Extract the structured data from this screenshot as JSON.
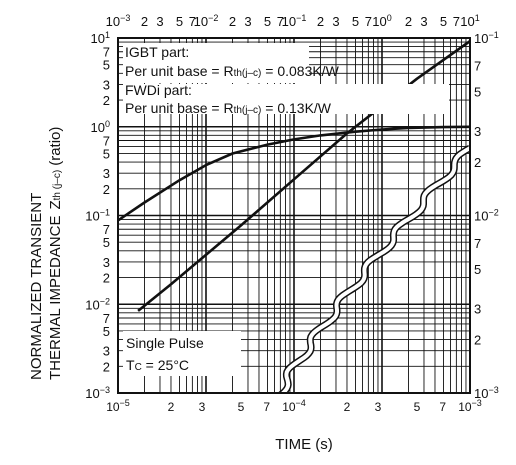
{
  "chart_data": {
    "type": "line",
    "title": "",
    "xlabel": "TIME (s)",
    "ylabel_line1": "NORMALIZED TRANSIENT",
    "ylabel_line2": "THERMAL IMPEDANCE",
    "ylabel_symbol": "Z",
    "ylabel_subscript": "th (j–c)",
    "ylabel_unit": "(ratio)",
    "scale": "log-log",
    "x_top_range": [
      0.001,
      10
    ],
    "x_bottom_range": [
      1e-05,
      0.001
    ],
    "y_left_range": [
      0.001,
      10
    ],
    "y_right_range": [
      0.001,
      0.1
    ],
    "grid": true,
    "annotations": {
      "igbt_title": "IGBT part:",
      "igbt_base_prefix": "Per unit base = R",
      "igbt_base_sub": "th(j–c)",
      "igbt_base_value": " = 0.083K/W",
      "fwdi_title": "FWDi part:",
      "fwdi_base_prefix": "Per unit base = R",
      "fwdi_base_sub": "th(j–c)",
      "fwdi_base_value": " = 0.13K/W",
      "pulse": "Single Pulse",
      "tc_prefix": "T",
      "tc_sub": "C",
      "tc_value": " = 25°C"
    },
    "series": [
      {
        "axis": "top-left",
        "x": [
          0.001,
          0.002,
          0.005,
          0.01,
          0.02,
          0.05,
          0.1,
          0.2,
          0.5,
          1,
          2,
          5,
          10
        ],
        "y": [
          0.088,
          0.14,
          0.25,
          0.37,
          0.5,
          0.63,
          0.72,
          0.8,
          0.88,
          0.93,
          0.97,
          0.99,
          1.0
        ]
      },
      {
        "axis": "bottom-right",
        "x": [
          1.3e-05,
          2e-05,
          5e-05,
          0.0001,
          0.0002,
          0.0005,
          0.001
        ],
        "y": [
          0.0029,
          0.0041,
          0.0088,
          0.016,
          0.029,
          0.059,
          0.096
        ]
      }
    ]
  }
}
